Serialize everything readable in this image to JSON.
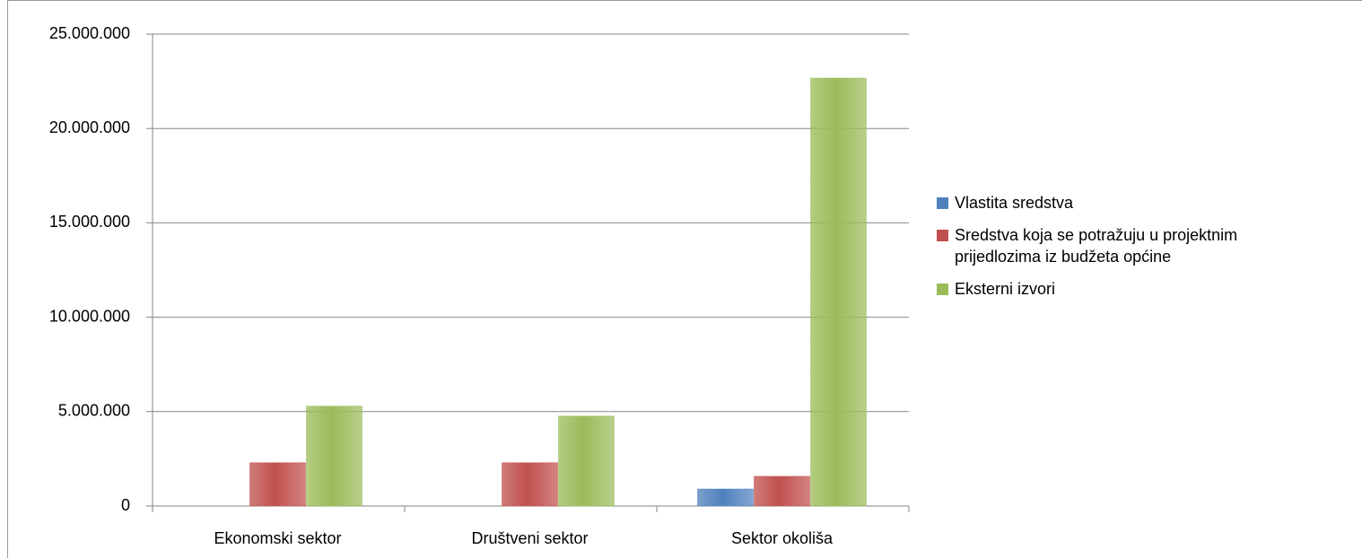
{
  "chart_data": {
    "type": "bar",
    "categories": [
      "Ekonomski sektor",
      "Društveni sektor",
      "Sektor okoliša"
    ],
    "series": [
      {
        "name": "Vlastita sredstva",
        "color": "#4f81bd",
        "values": [
          0,
          0,
          900000
        ]
      },
      {
        "name": "Sredstva koja se potražuju u projektnim prijedlozima iz budžeta općine",
        "color": "#c0504d",
        "values": [
          2290000,
          2290000,
          1570000
        ]
      },
      {
        "name": "Eksterni izvori",
        "color": "#9bbb59",
        "values": [
          5290000,
          4760000,
          22670000
        ]
      }
    ],
    "ylim": [
      0,
      25000000
    ],
    "yticks": [
      {
        "value": 0,
        "label": "0"
      },
      {
        "value": 5000000,
        "label": "5.000.000"
      },
      {
        "value": 10000000,
        "label": "10.000.000"
      },
      {
        "value": 15000000,
        "label": "15.000.000"
      },
      {
        "value": 20000000,
        "label": "20.000.000"
      },
      {
        "value": 25000000,
        "label": "25.000.000"
      }
    ],
    "grid": true,
    "legend": "right"
  }
}
